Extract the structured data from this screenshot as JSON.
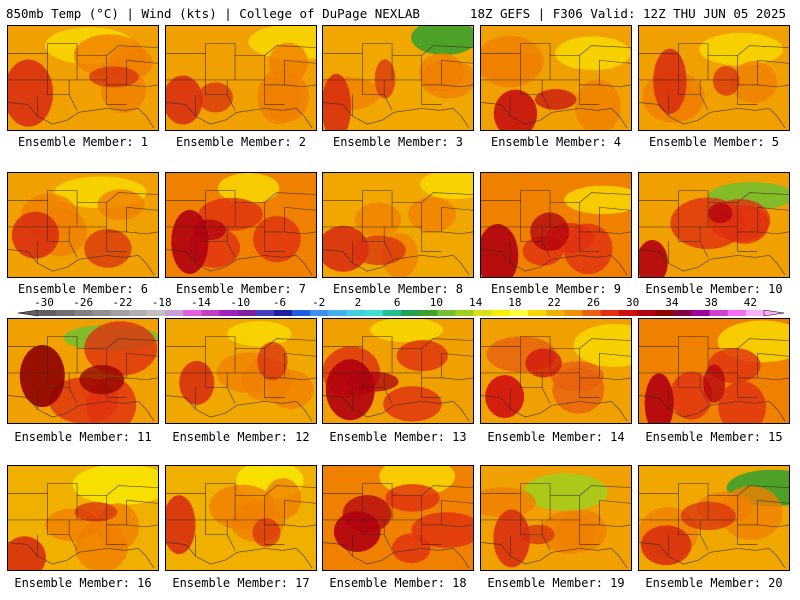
{
  "header": {
    "left": "850mb Temp (°C) | Wind (kts) | College of DuPage NEXLAB",
    "right": "18Z GEFS | F306 Valid: 12Z THU JUN 05 2025"
  },
  "colorbar": {
    "labels": [
      "-30",
      "-26",
      "-22",
      "-18",
      "-14",
      "-10",
      "-6",
      "-2",
      "2",
      "6",
      "10",
      "14",
      "18",
      "22",
      "26",
      "30",
      "34",
      "38",
      "42"
    ],
    "colors": [
      "#606060",
      "#707070",
      "#808080",
      "#909090",
      "#a0a0a0",
      "#b0b0b0",
      "#c0c0c0",
      "#c8a0d8",
      "#e060e0",
      "#c040c0",
      "#a020c0",
      "#8020a0",
      "#4040c0",
      "#2020a0",
      "#2060e0",
      "#4090f0",
      "#40b0f0",
      "#40d0e0",
      "#40e0d0",
      "#20c090",
      "#20a050",
      "#40a030",
      "#70c030",
      "#a0d020",
      "#d8e020",
      "#f8f000",
      "#ffff40",
      "#f8d800",
      "#f0b000",
      "#f09000",
      "#e86010",
      "#e03010",
      "#d01010",
      "#b00010",
      "#900000",
      "#800040",
      "#a000a0",
      "#d040d0",
      "#f070f0",
      "#f8b0f8"
    ]
  },
  "panels": [
    {
      "label": "Ensemble Member: 1",
      "palette": {
        "base": "#f0a000",
        "hot": "#d83010",
        "warm": "#f08000",
        "cool": "#f8d800"
      }
    },
    {
      "label": "Ensemble Member: 2",
      "palette": {
        "base": "#f0a000",
        "hot": "#d83010",
        "warm": "#f08000",
        "cool": "#f8d800"
      }
    },
    {
      "label": "Ensemble Member: 3",
      "palette": {
        "base": "#f0a800",
        "hot": "#d83010",
        "warm": "#f08000",
        "cool": "#30a030"
      }
    },
    {
      "label": "Ensemble Member: 4",
      "palette": {
        "base": "#f0a000",
        "hot": "#c81010",
        "warm": "#f08000",
        "cool": "#f8d800"
      }
    },
    {
      "label": "Ensemble Member: 5",
      "palette": {
        "base": "#f0a000",
        "hot": "#d83010",
        "warm": "#f08000",
        "cool": "#f8d800"
      }
    },
    {
      "label": "Ensemble Member: 6",
      "palette": {
        "base": "#f0a000",
        "hot": "#d83010",
        "warm": "#f08000",
        "cool": "#f8d800"
      }
    },
    {
      "label": "Ensemble Member: 7",
      "palette": {
        "base": "#f08000",
        "hot": "#b00010",
        "warm": "#e03010",
        "cool": "#f8d800"
      }
    },
    {
      "label": "Ensemble Member: 8",
      "palette": {
        "base": "#f0a800",
        "hot": "#d83010",
        "warm": "#f08000",
        "cool": "#f8d800"
      }
    },
    {
      "label": "Ensemble Member: 9",
      "palette": {
        "base": "#f08000",
        "hot": "#b00010",
        "warm": "#e03010",
        "cool": "#f8d800"
      }
    },
    {
      "label": "Ensemble Member: 10",
      "palette": {
        "base": "#f0a000",
        "hot": "#b00010",
        "warm": "#e03010",
        "cool": "#70c030"
      }
    },
    {
      "label": "Ensemble Member: 11",
      "palette": {
        "base": "#f0a000",
        "hot": "#900000",
        "warm": "#e03010",
        "cool": "#70c030"
      }
    },
    {
      "label": "Ensemble Member: 12",
      "palette": {
        "base": "#f0a800",
        "hot": "#d83010",
        "warm": "#f08000",
        "cool": "#f8d800"
      }
    },
    {
      "label": "Ensemble Member: 13",
      "palette": {
        "base": "#f0a000",
        "hot": "#b00010",
        "warm": "#e03010",
        "cool": "#f8d800"
      }
    },
    {
      "label": "Ensemble Member: 14",
      "palette": {
        "base": "#f0a000",
        "hot": "#d01010",
        "warm": "#e86010",
        "cool": "#f8d800"
      }
    },
    {
      "label": "Ensemble Member: 15",
      "palette": {
        "base": "#f08000",
        "hot": "#b00010",
        "warm": "#e03010",
        "cool": "#f8d800"
      }
    },
    {
      "label": "Ensemble Member: 16",
      "palette": {
        "base": "#f0b000",
        "hot": "#d83010",
        "warm": "#f08000",
        "cool": "#f8e800"
      }
    },
    {
      "label": "Ensemble Member: 17",
      "palette": {
        "base": "#f0b000",
        "hot": "#d83010",
        "warm": "#f08000",
        "cool": "#f8e800"
      }
    },
    {
      "label": "Ensemble Member: 18",
      "palette": {
        "base": "#f08000",
        "hot": "#b00010",
        "warm": "#e03010",
        "cool": "#f8d800"
      }
    },
    {
      "label": "Ensemble Member: 19",
      "palette": {
        "base": "#f0a000",
        "hot": "#d83010",
        "warm": "#f08000",
        "cool": "#a0d020"
      }
    },
    {
      "label": "Ensemble Member: 20",
      "palette": {
        "base": "#f0a800",
        "hot": "#d83010",
        "warm": "#f08000",
        "cool": "#30a030"
      }
    }
  ]
}
